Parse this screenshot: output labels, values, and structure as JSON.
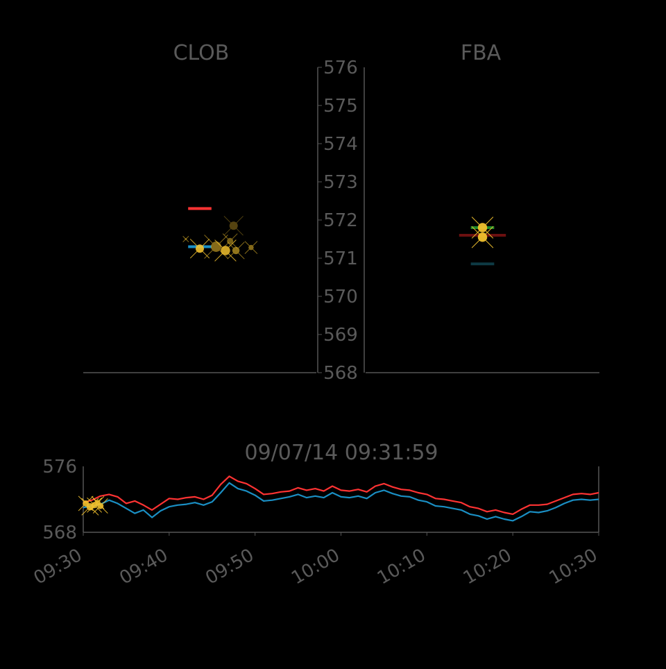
{
  "colors": {
    "background": "#000000",
    "text": "#5a5a5a",
    "axis": "#555555",
    "ask": "#ff3333",
    "bid": "#1a8fc4",
    "trade": "#f2c12e",
    "fba_green": "#1f8a2a",
    "fba_darkred": "#6b1010",
    "fba_darkteal": "#0e3a44"
  },
  "chart_data": [
    {
      "id": "clob",
      "type": "scatter",
      "title": "CLOB",
      "ylim": [
        568,
        576
      ],
      "y_ticks": [
        "568",
        "569",
        "570",
        "571",
        "572",
        "573",
        "574",
        "575",
        "576"
      ],
      "quote_lines": [
        {
          "role": "ask",
          "y": 572.3,
          "x_start": 0.45,
          "x_end": 0.55
        },
        {
          "role": "bid",
          "y": 571.3,
          "x_start": 0.45,
          "x_end": 0.55
        }
      ],
      "trades": [
        {
          "x": 0.44,
          "y": 571.5,
          "size": 2,
          "alpha": 0.6
        },
        {
          "x": 0.5,
          "y": 571.25,
          "size": 8,
          "alpha": 0.9
        },
        {
          "x": 0.57,
          "y": 571.3,
          "size": 10,
          "alpha": 0.55
        },
        {
          "x": 0.61,
          "y": 571.2,
          "size": 9,
          "alpha": 0.85
        },
        {
          "x": 0.63,
          "y": 571.45,
          "size": 6,
          "alpha": 0.5
        },
        {
          "x": 0.645,
          "y": 571.85,
          "size": 8,
          "alpha": 0.35
        },
        {
          "x": 0.655,
          "y": 571.2,
          "size": 7,
          "alpha": 0.6
        },
        {
          "x": 0.72,
          "y": 571.28,
          "size": 5,
          "alpha": 0.55
        }
      ]
    },
    {
      "id": "fba",
      "type": "scatter",
      "title": "FBA",
      "ylim": [
        568,
        576
      ],
      "quote_lines": [
        {
          "role": "fba_green",
          "y": 571.8,
          "x_start": 0.45,
          "x_end": 0.55
        },
        {
          "role": "fba_darkred",
          "y": 571.6,
          "x_start": 0.4,
          "x_end": 0.6
        },
        {
          "role": "fba_darkteal",
          "y": 570.85,
          "x_start": 0.45,
          "x_end": 0.55
        }
      ],
      "trades": [
        {
          "x": 0.5,
          "y": 571.8,
          "size": 9,
          "alpha": 0.95
        },
        {
          "x": 0.5,
          "y": 571.55,
          "size": 9,
          "alpha": 0.95
        }
      ]
    },
    {
      "id": "timeline",
      "type": "line",
      "title": "09/07/14 09:31:59",
      "x_tick_labels": [
        "09:30",
        "09:40",
        "09:50",
        "10:00",
        "10:10",
        "10:20",
        "10:30"
      ],
      "x_ticks": [
        0,
        10,
        20,
        30,
        40,
        50,
        60
      ],
      "xlim": [
        0,
        60
      ],
      "ylim": [
        568,
        576
      ],
      "y_tick_labels": [
        "568",
        "576"
      ],
      "series": [
        {
          "role": "ask",
          "x": [
            0,
            1,
            2,
            3,
            4,
            5,
            6,
            7,
            8,
            9,
            10,
            11,
            12,
            13,
            14,
            15,
            16,
            17,
            18,
            19,
            20,
            21,
            22,
            23,
            24,
            25,
            26,
            27,
            28,
            29,
            30,
            31,
            32,
            33,
            34,
            35,
            36,
            37,
            38,
            39,
            40,
            41,
            42,
            43,
            44,
            45,
            46,
            47,
            48,
            49,
            50,
            51,
            52,
            53,
            54,
            55,
            56,
            57,
            58,
            59,
            60
          ],
          "values": [
            571.6,
            571.9,
            572.4,
            572.6,
            572.3,
            571.5,
            571.8,
            571.3,
            570.7,
            571.4,
            572.1,
            572.0,
            572.2,
            572.3,
            572.0,
            572.5,
            573.8,
            574.8,
            574.2,
            573.9,
            573.3,
            572.6,
            572.7,
            572.9,
            573.0,
            573.4,
            573.1,
            573.3,
            573.0,
            573.6,
            573.1,
            573.0,
            573.2,
            572.9,
            573.6,
            573.9,
            573.5,
            573.2,
            573.1,
            572.8,
            572.6,
            572.1,
            572.0,
            571.8,
            571.6,
            571.1,
            570.9,
            570.5,
            570.7,
            570.4,
            570.2,
            570.8,
            571.3,
            571.3,
            571.4,
            571.8,
            572.2,
            572.6,
            572.7,
            572.6,
            572.8
          ]
        },
        {
          "role": "bid",
          "x": [
            0,
            1,
            2,
            3,
            4,
            5,
            6,
            7,
            8,
            9,
            10,
            11,
            12,
            13,
            14,
            15,
            16,
            17,
            18,
            19,
            20,
            21,
            22,
            23,
            24,
            25,
            26,
            27,
            28,
            29,
            30,
            31,
            32,
            33,
            34,
            35,
            36,
            37,
            38,
            39,
            40,
            41,
            42,
            43,
            44,
            45,
            46,
            47,
            48,
            49,
            50,
            51,
            52,
            53,
            54,
            55,
            56,
            57,
            58,
            59,
            60
          ],
          "values": [
            571.0,
            571.2,
            571.4,
            571.9,
            571.5,
            570.9,
            570.3,
            570.7,
            569.8,
            570.6,
            571.1,
            571.3,
            571.4,
            571.6,
            571.3,
            571.7,
            572.8,
            574.0,
            573.3,
            573.0,
            572.5,
            571.8,
            571.9,
            572.1,
            572.3,
            572.6,
            572.2,
            572.4,
            572.2,
            572.8,
            572.3,
            572.2,
            572.4,
            572.1,
            572.8,
            573.1,
            572.7,
            572.4,
            572.3,
            571.9,
            571.7,
            571.2,
            571.1,
            570.9,
            570.7,
            570.2,
            570.0,
            569.6,
            569.9,
            569.6,
            569.4,
            569.9,
            570.5,
            570.4,
            570.6,
            571.0,
            571.5,
            571.9,
            572.0,
            571.9,
            572.0
          ]
        }
      ],
      "trades": [
        {
          "x": 0.3,
          "y": 571.5,
          "size": 6
        },
        {
          "x": 0.8,
          "y": 571.1,
          "size": 7
        },
        {
          "x": 1.3,
          "y": 571.3,
          "size": 6
        },
        {
          "x": 1.7,
          "y": 571.6,
          "size": 5
        },
        {
          "x": 2.0,
          "y": 571.2,
          "size": 6
        }
      ]
    }
  ]
}
